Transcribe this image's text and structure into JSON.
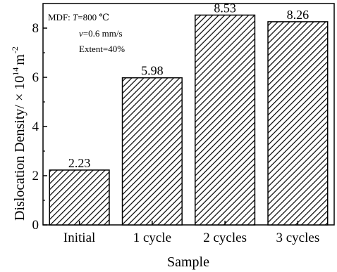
{
  "chart_data": {
    "type": "bar",
    "categories": [
      "Initial",
      "1 cycle",
      "2 cycles",
      "3 cycles"
    ],
    "values": [
      2.23,
      5.98,
      8.53,
      8.26
    ],
    "data_labels": [
      "2.23",
      "5.98",
      "8.53",
      "8.26"
    ],
    "xlabel": "Sample",
    "ylabel_text": "Dislocation Density/ × 10",
    "ylabel_exponent": "14",
    "ylabel_unit": "m",
    "ylabel_unit_exponent": "-2",
    "ylim": [
      0,
      9
    ],
    "yticks": [
      0,
      2,
      4,
      6,
      8
    ],
    "ytick_labels": [
      "0",
      "2",
      "4",
      "6",
      "8"
    ],
    "grid": false,
    "bar_fill": "diagonal-hatch",
    "colors": {
      "bar_stroke": "#000000",
      "hatch": "#000000",
      "background": "#ffffff"
    },
    "annotation": {
      "line1_prefix": "MDF: ",
      "line1_var": "T",
      "line1_rest": "=800 ℃",
      "line2_var": "v",
      "line2_rest": "=0.6 mm/s",
      "line3": "Extent=40%"
    }
  }
}
